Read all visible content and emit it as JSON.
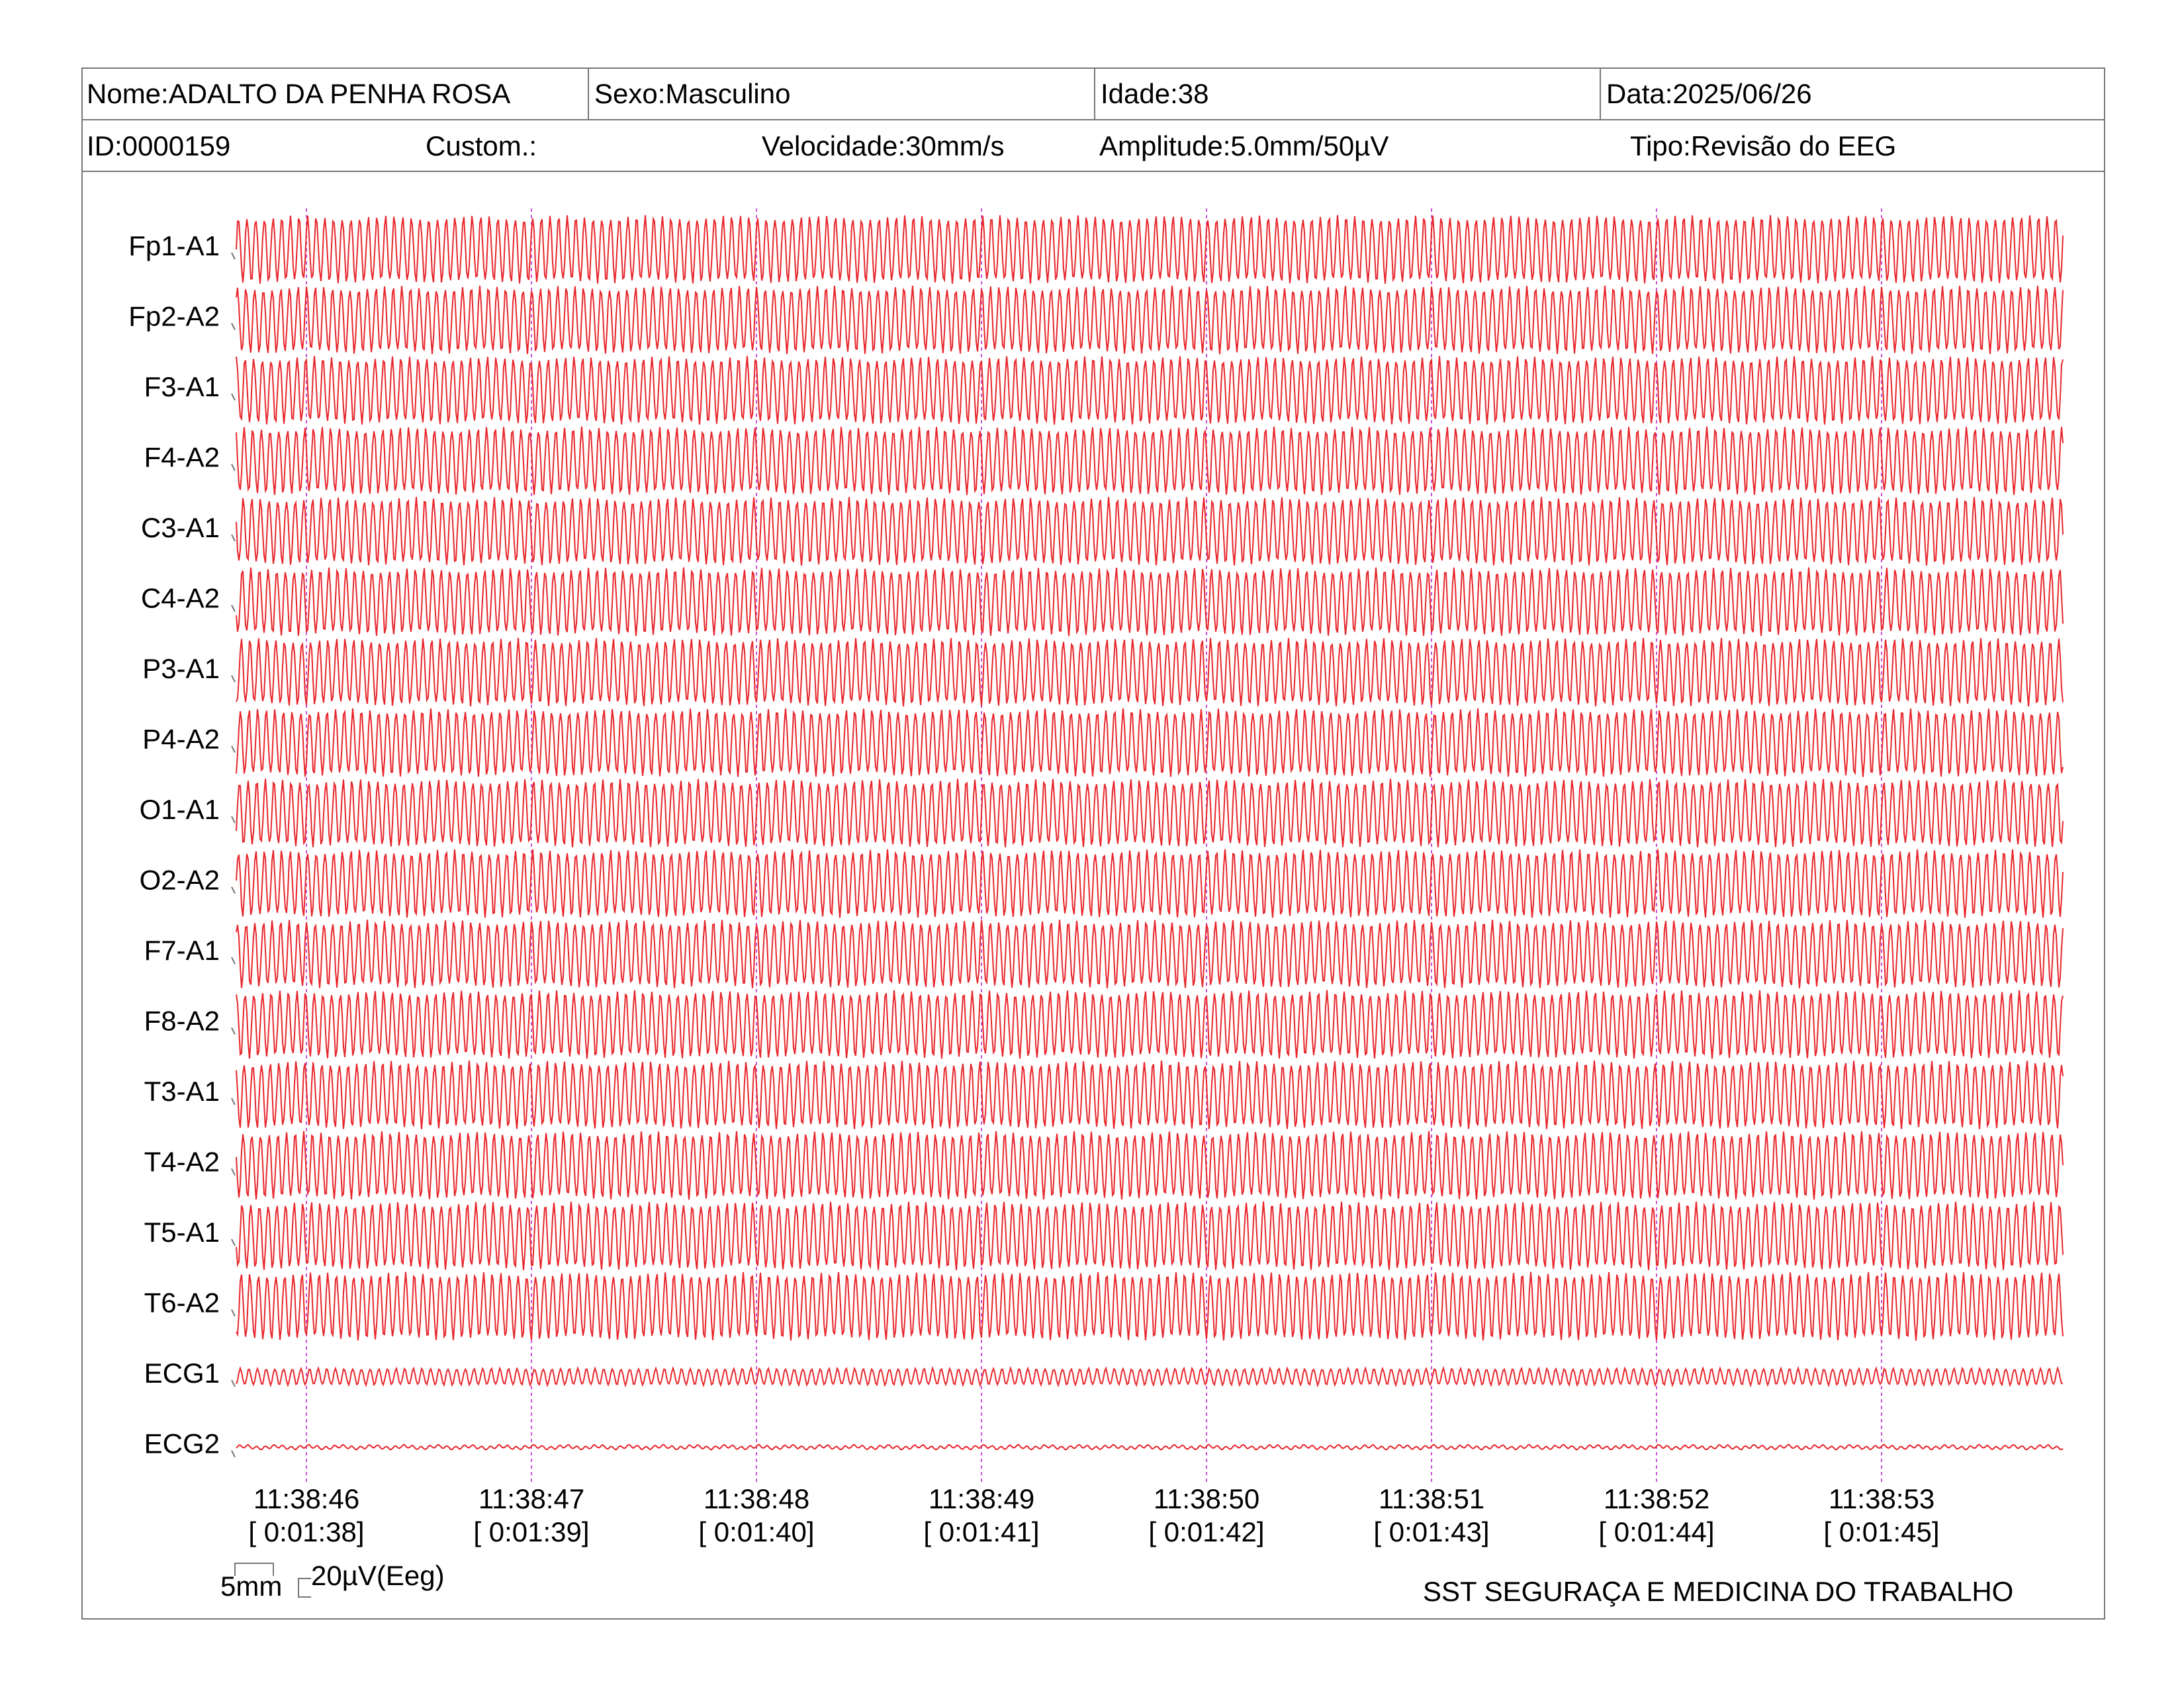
{
  "header": {
    "nome": "Nome:ADALTO DA PENHA ROSA",
    "sexo": "Sexo:Masculino",
    "idade": "Idade:38",
    "data": "Data:2025/06/26",
    "id": "ID:0000159",
    "custom": "Custom.:",
    "velocidade": "Velocidade:30mm/s",
    "amplitude": "Amplitude:5.0mm/50µV",
    "tipo": "Tipo:Revisão do EEG"
  },
  "footer": {
    "scale_time": "5mm",
    "scale_amp": "20µV(Eeg)",
    "company": "SST SEGURAÇA E MEDICINA DO TRABALHO"
  },
  "colors": {
    "trace": "#e8262b",
    "marker": "#c855d8",
    "frame": "#777777"
  },
  "chart_data": {
    "type": "line",
    "description_of_content": "EEG montage recording",
    "channels": [
      "Fp1-A1",
      "Fp2-A2",
      "F3-A1",
      "F4-A2",
      "C3-A1",
      "C4-A2",
      "P3-A1",
      "P4-A2",
      "O1-A1",
      "O2-A2",
      "F7-A1",
      "F8-A2",
      "T3-A1",
      "T4-A2",
      "T5-A1",
      "T6-A2",
      "ECG1",
      "ECG2"
    ],
    "time_markers": [
      {
        "clock": "11:38:46",
        "elapsed": "[ 0:01:38]"
      },
      {
        "clock": "11:38:47",
        "elapsed": "[ 0:01:39]"
      },
      {
        "clock": "11:38:48",
        "elapsed": "[ 0:01:40]"
      },
      {
        "clock": "11:38:49",
        "elapsed": "[ 0:01:41]"
      },
      {
        "clock": "11:38:50",
        "elapsed": "[ 0:01:42]"
      },
      {
        "clock": "11:38:51",
        "elapsed": "[ 0:01:43]"
      },
      {
        "clock": "11:38:52",
        "elapsed": "[ 0:01:44]"
      },
      {
        "clock": "11:38:53",
        "elapsed": "[ 0:01:45]"
      }
    ],
    "seconds_shown": 8.1,
    "eeg_dominant_frequency_hz": 26,
    "ecg1_dominant_frequency_hz": 26,
    "ecg2_dominant_frequency_hz": 26,
    "eeg_relative_amplitude": 1.0,
    "ecg1_relative_amplitude": 0.25,
    "ecg2_relative_amplitude": 0.05
  }
}
